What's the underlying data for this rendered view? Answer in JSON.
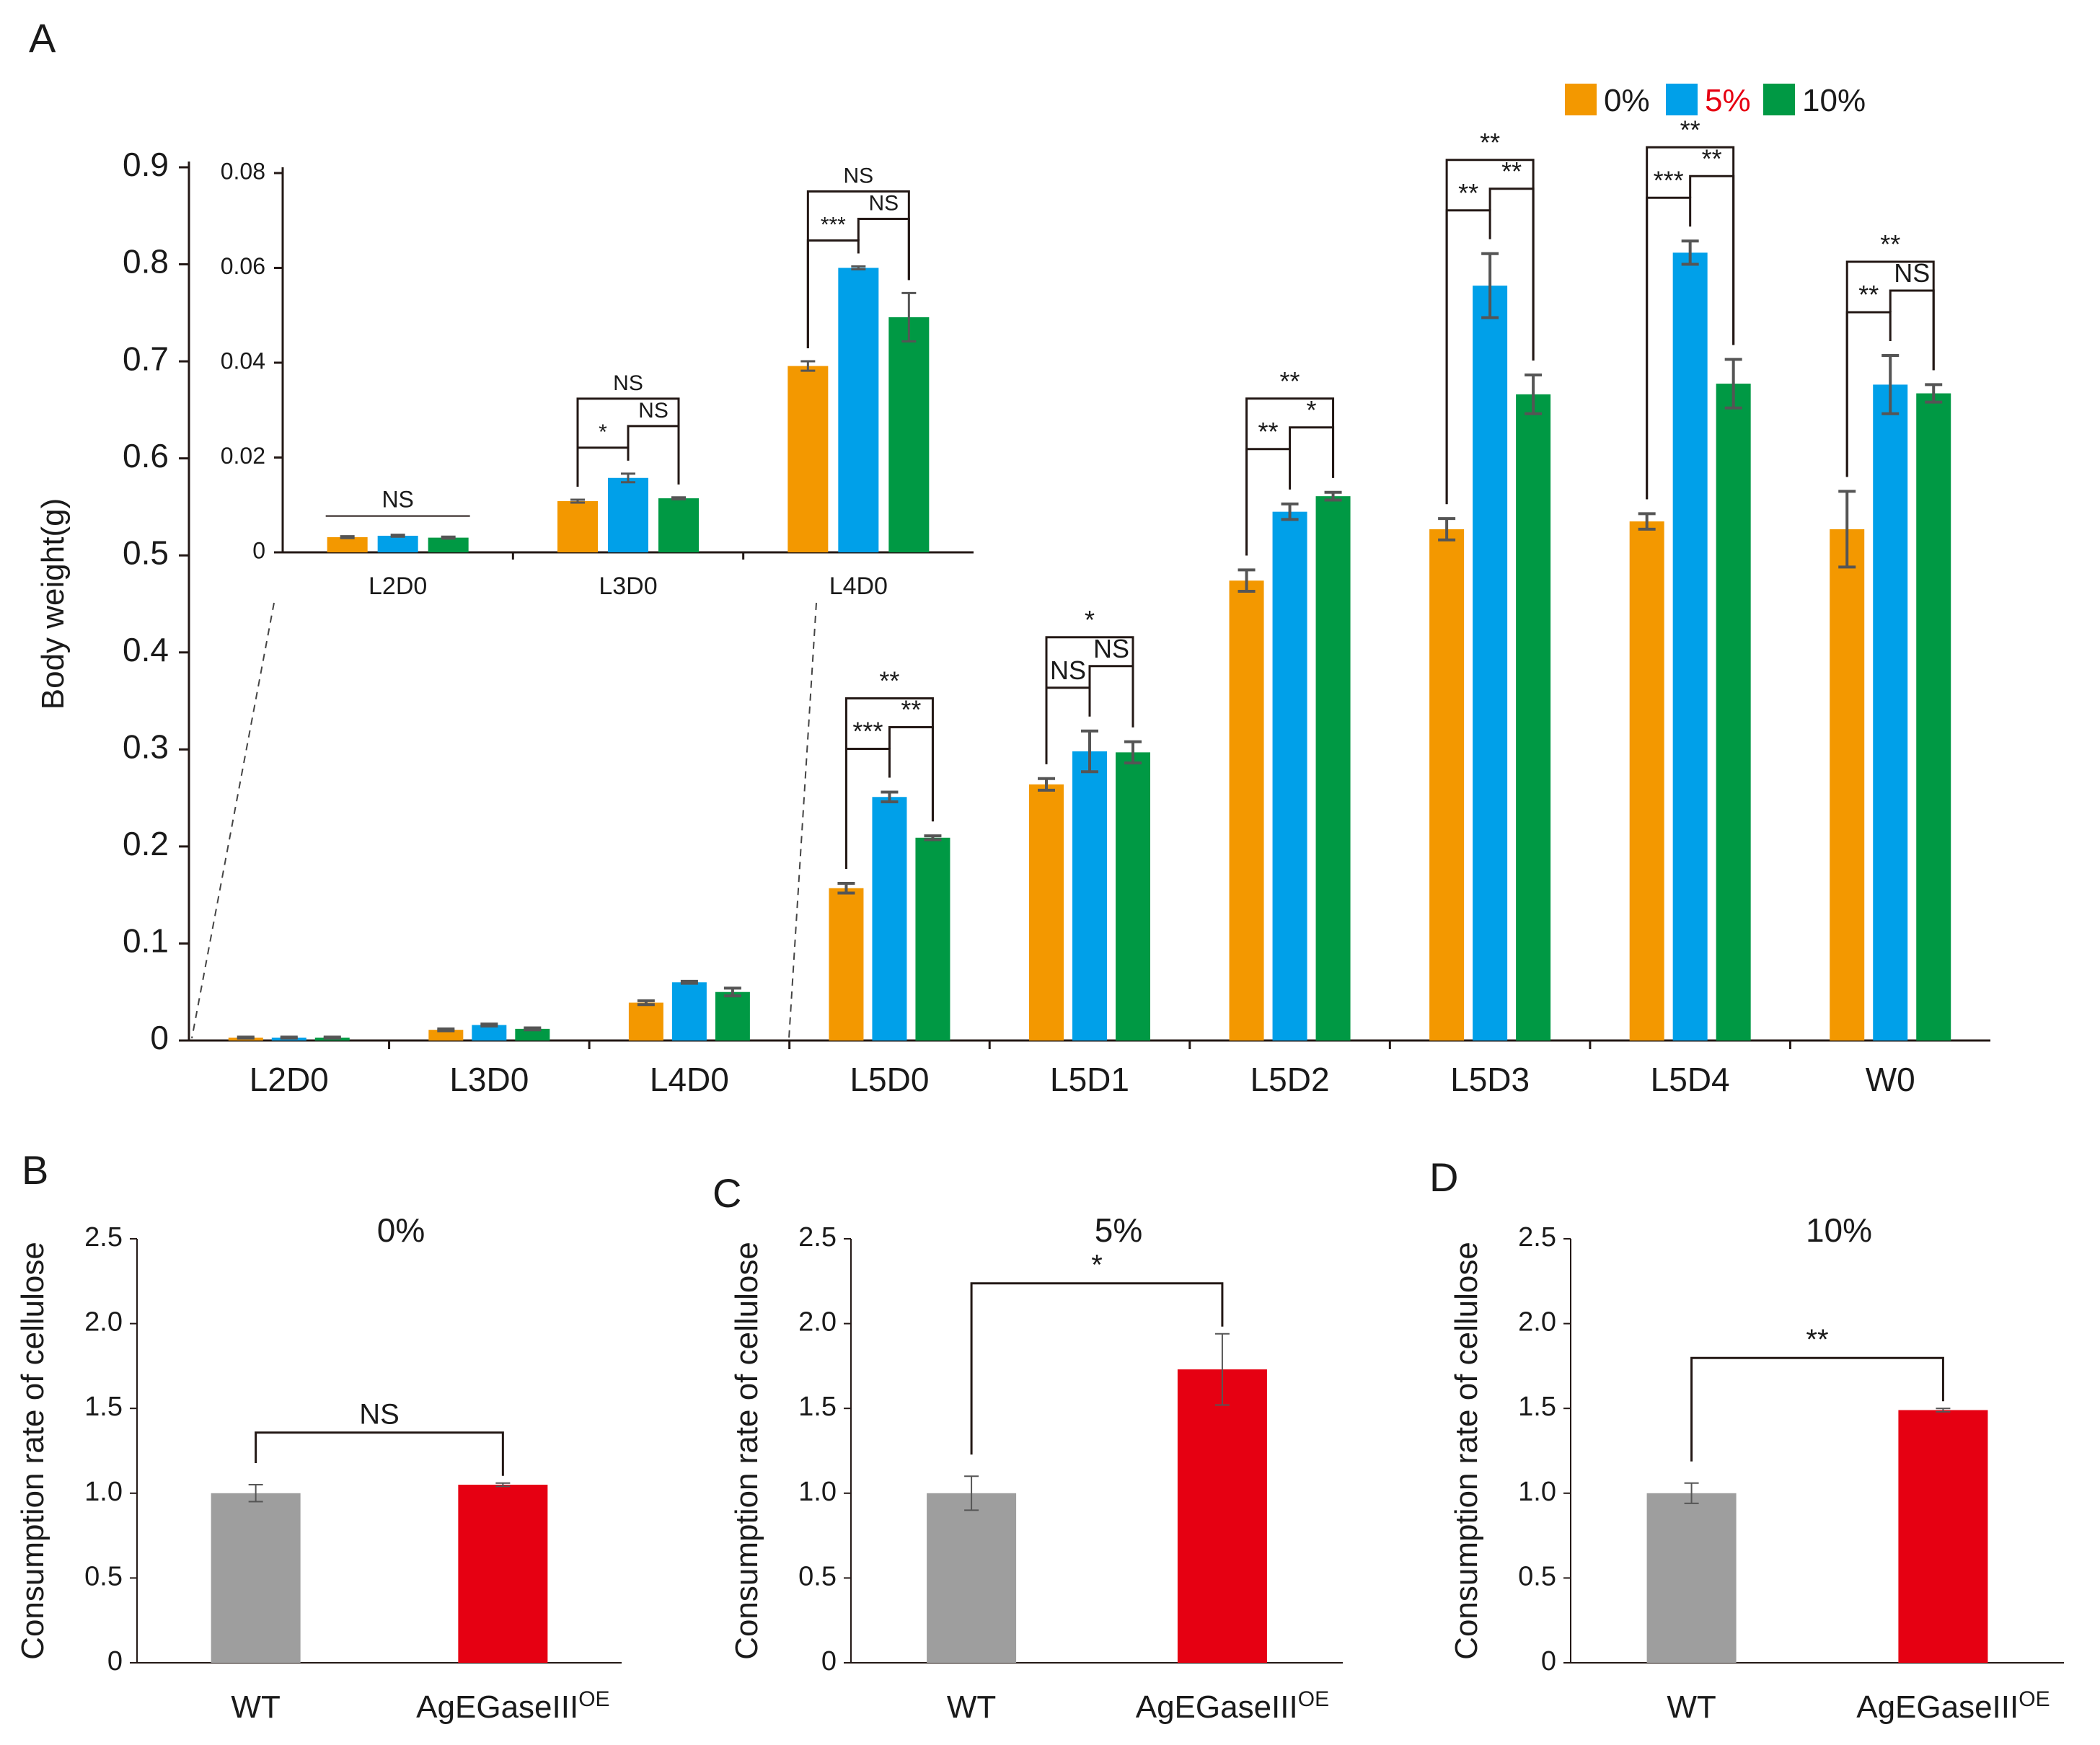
{
  "colors": {
    "c0": "#f39800",
    "c5": "#00a0e9",
    "c10": "#009944",
    "wt": "#9e9e9e",
    "oe": "#e60012",
    "red_text": "#e60012",
    "err": "#555555"
  },
  "chart_data": [
    {
      "id": "A",
      "panel_label": "A",
      "type": "bar",
      "ylabel": "Body weight(g)",
      "ylim": [
        0,
        0.9
      ],
      "yticks": [
        "0",
        "0.1",
        "0.2",
        "0.3",
        "0.4",
        "0.5",
        "0.6",
        "0.7",
        "0.8",
        "0.9"
      ],
      "categories": [
        "L2D0",
        "L3D0",
        "L4D0",
        "L5D0",
        "L5D1",
        "L5D2",
        "L5D3",
        "L5D4",
        "W0"
      ],
      "legend": {
        "placement": "top-right",
        "items": [
          "0%",
          "5%",
          "10%"
        ]
      },
      "series": [
        {
          "name": "0%",
          "values": [
            0.003,
            0.011,
            0.039,
            0.157,
            0.264,
            0.474,
            0.527,
            0.535,
            0.527
          ],
          "errors": [
            0.0005,
            0.001,
            0.002,
            0.005,
            0.006,
            0.011,
            0.011,
            0.008,
            0.039
          ]
        },
        {
          "name": "5%",
          "values": [
            0.003,
            0.016,
            0.06,
            0.251,
            0.298,
            0.545,
            0.778,
            0.812,
            0.676
          ],
          "errors": [
            0.0005,
            0.001,
            0.001,
            0.005,
            0.021,
            0.008,
            0.033,
            0.012,
            0.03
          ]
        },
        {
          "name": "10%",
          "values": [
            0.003,
            0.012,
            0.05,
            0.209,
            0.297,
            0.561,
            0.666,
            0.677,
            0.667
          ],
          "errors": [
            0.0005,
            0.001,
            0.004,
            0.002,
            0.011,
            0.004,
            0.02,
            0.025,
            0.009
          ]
        }
      ],
      "significance": [
        {
          "category": "L5D0",
          "pairs": [
            [
              "0%",
              "5%",
              "***"
            ],
            [
              "5%",
              "10%",
              "**"
            ],
            [
              "0%",
              "10%",
              "**"
            ]
          ]
        },
        {
          "category": "L5D1",
          "pairs": [
            [
              "0%",
              "5%",
              "NS"
            ],
            [
              "5%",
              "10%",
              "NS"
            ],
            [
              "0%",
              "10%",
              "*"
            ]
          ]
        },
        {
          "category": "L5D2",
          "pairs": [
            [
              "0%",
              "5%",
              "**"
            ],
            [
              "5%",
              "10%",
              "*"
            ],
            [
              "0%",
              "10%",
              "**"
            ]
          ]
        },
        {
          "category": "L5D3",
          "pairs": [
            [
              "0%",
              "5%",
              "**"
            ],
            [
              "5%",
              "10%",
              "**"
            ],
            [
              "0%",
              "10%",
              "**"
            ]
          ]
        },
        {
          "category": "L5D4",
          "pairs": [
            [
              "0%",
              "5%",
              "***"
            ],
            [
              "5%",
              "10%",
              "**"
            ],
            [
              "0%",
              "10%",
              "**"
            ]
          ]
        },
        {
          "category": "W0",
          "pairs": [
            [
              "0%",
              "5%",
              "**"
            ],
            [
              "5%",
              "10%",
              "NS"
            ],
            [
              "0%",
              "10%",
              "**"
            ]
          ]
        }
      ]
    },
    {
      "id": "A-inset",
      "type": "bar",
      "ylim": [
        0,
        0.08
      ],
      "yticks": [
        "0",
        "0.02",
        "0.04",
        "0.06",
        "0.08"
      ],
      "categories": [
        "L2D0",
        "L3D0",
        "L4D0"
      ],
      "series": [
        {
          "name": "0%",
          "values": [
            0.0032,
            0.0108,
            0.0393
          ],
          "errors": [
            0.0002,
            0.0003,
            0.001
          ]
        },
        {
          "name": "5%",
          "values": [
            0.0035,
            0.0157,
            0.06
          ],
          "errors": [
            0.0002,
            0.0009,
            0.0003
          ]
        },
        {
          "name": "10%",
          "values": [
            0.0031,
            0.0114,
            0.0496
          ],
          "errors": [
            0.0002,
            0.0002,
            0.0051
          ]
        }
      ],
      "significance": [
        {
          "category": "L2D0",
          "pairs": [
            [
              "0%",
              "10%",
              "NS"
            ]
          ]
        },
        {
          "category": "L3D0",
          "pairs": [
            [
              "0%",
              "5%",
              "*"
            ],
            [
              "5%",
              "10%",
              "NS"
            ],
            [
              "0%",
              "10%",
              "NS"
            ]
          ]
        },
        {
          "category": "L4D0",
          "pairs": [
            [
              "0%",
              "5%",
              "***"
            ],
            [
              "5%",
              "10%",
              "NS"
            ],
            [
              "0%",
              "10%",
              "NS"
            ]
          ]
        }
      ]
    },
    {
      "id": "B",
      "panel_label": "B",
      "type": "bar",
      "title": "0%",
      "ylabel": "Consumption rate of cellulose",
      "ylim": [
        0,
        2.5
      ],
      "yticks": [
        "0",
        "0.5",
        "1.0",
        "1.5",
        "2.0",
        "2.5"
      ],
      "categories": [
        "WT",
        "AgEGaseIII"
      ],
      "category_superscripts": [
        "",
        "OE"
      ],
      "values": [
        1.0,
        1.05
      ],
      "errors": [
        0.05,
        0.01
      ],
      "significance": "NS"
    },
    {
      "id": "C",
      "panel_label": "C",
      "type": "bar",
      "title": "5%",
      "ylabel": "Consumption rate of cellulose",
      "ylim": [
        0,
        2.5
      ],
      "yticks": [
        "0",
        "0.5",
        "1.0",
        "1.5",
        "2.0",
        "2.5"
      ],
      "categories": [
        "WT",
        "AgEGaseIII"
      ],
      "category_superscripts": [
        "",
        "OE"
      ],
      "values": [
        1.0,
        1.73
      ],
      "errors": [
        0.1,
        0.21
      ],
      "significance": "*"
    },
    {
      "id": "D",
      "panel_label": "D",
      "type": "bar",
      "title": "10%",
      "ylabel": "Consumption rate of cellulose",
      "ylim": [
        0,
        2.5
      ],
      "yticks": [
        "0",
        "0.5",
        "1.0",
        "1.5",
        "2.0",
        "2.5"
      ],
      "categories": [
        "WT",
        "AgEGaseIII"
      ],
      "category_superscripts": [
        "",
        "OE"
      ],
      "values": [
        1.0,
        1.49
      ],
      "errors": [
        0.06,
        0.01
      ],
      "significance": "**"
    }
  ]
}
